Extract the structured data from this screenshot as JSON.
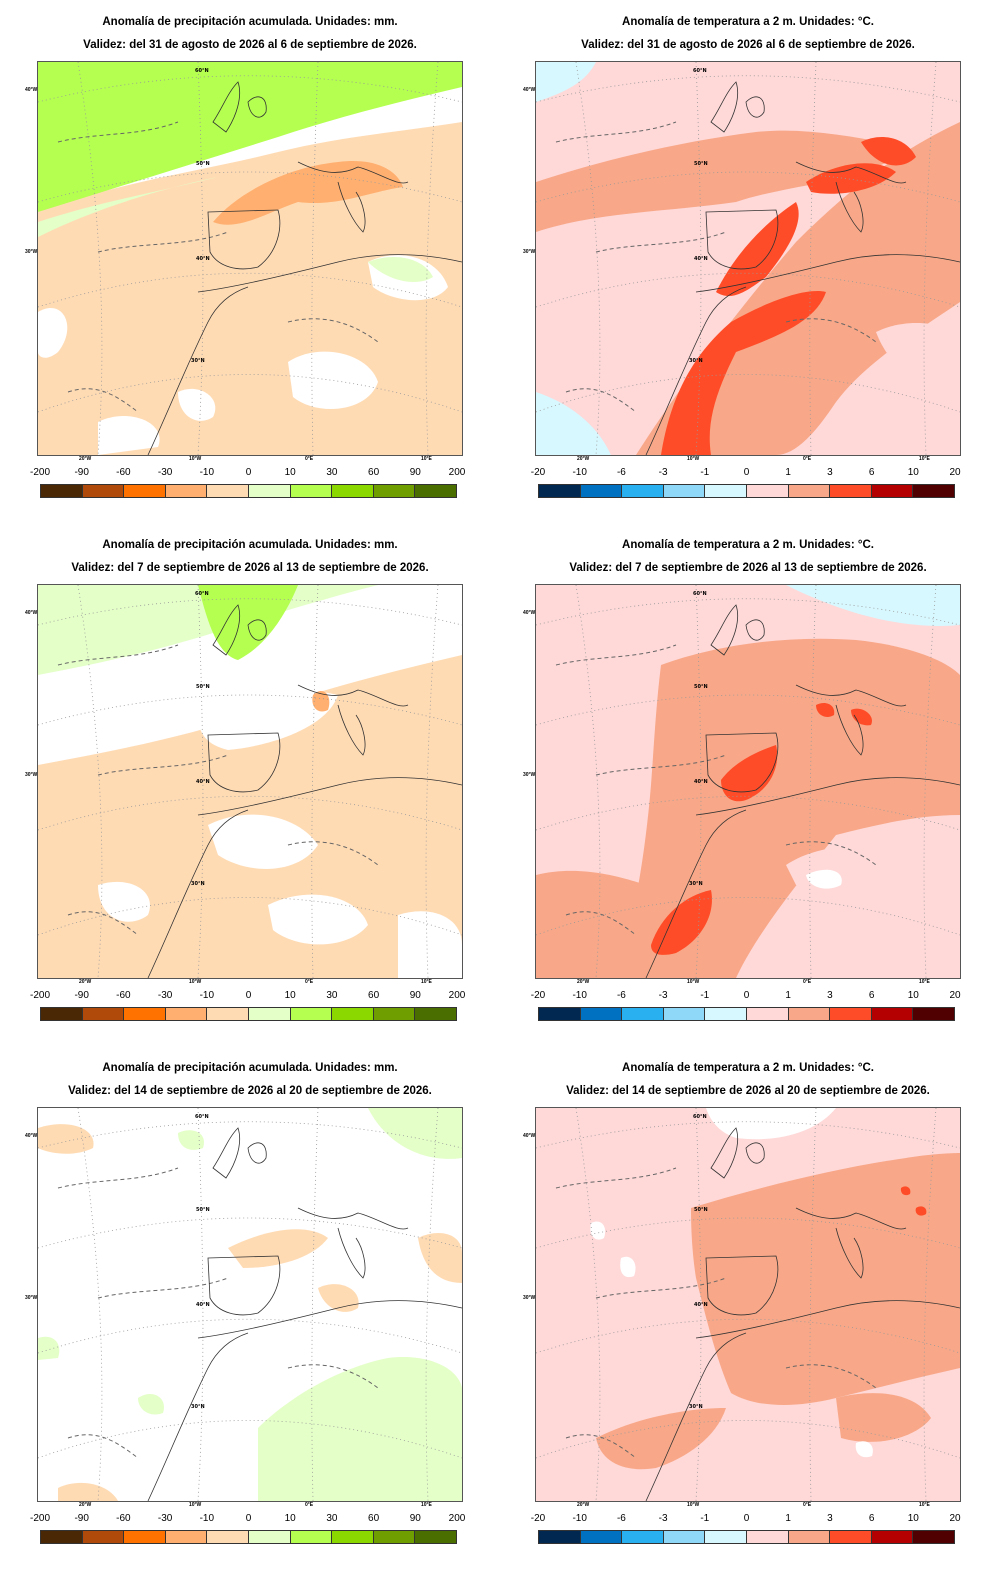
{
  "panels": [
    {
      "kind": "precip",
      "title": "Anomalía de precipitación acumulada. Unidades: mm.",
      "validity": "Validez: del 31 de agosto de 2026 al 6 de septiembre de 2026."
    },
    {
      "kind": "temp",
      "title": "Anomalía de temperatura a 2 m. Unidades: °C.",
      "validity": "Validez: del 31 de agosto de 2026 al 6 de septiembre de 2026."
    },
    {
      "kind": "precip",
      "title": "Anomalía de precipitación acumulada. Unidades: mm.",
      "validity": "Validez: del 7 de septiembre de 2026 al 13 de septiembre de 2026."
    },
    {
      "kind": "temp",
      "title": "Anomalía de temperatura a 2 m. Unidades: °C.",
      "validity": "Validez: del 7 de septiembre de 2026 al 13 de septiembre de 2026."
    },
    {
      "kind": "precip",
      "title": "Anomalía de precipitación acumulada. Unidades: mm.",
      "validity": "Validez: del 14 de septiembre de 2026 al 20 de septiembre de 2026."
    },
    {
      "kind": "temp",
      "title": "Anomalía de temperatura a 2 m. Unidades: °C.",
      "validity": "Validez: del 14 de septiembre de 2026 al 20 de septiembre de 2026."
    }
  ],
  "grid_labels": {
    "lat": [
      "60°N",
      "50°N",
      "40°N",
      "30°N"
    ],
    "lon_left": [
      "40°W",
      "30°W"
    ],
    "lon_bottom": [
      "20°W",
      "10°W",
      "0°E",
      "10°E"
    ]
  },
  "legends": {
    "precip": {
      "ticks": [
        "-200",
        "-90",
        "-60",
        "-30",
        "-10",
        "0",
        "10",
        "30",
        "60",
        "90",
        "200"
      ],
      "colors": [
        "#4a2806",
        "#b04a0a",
        "#ff7200",
        "#ffb070",
        "#ffdbb4",
        "#e4ffc8",
        "#b4ff50",
        "#8ad800",
        "#6e9e00",
        "#4a6e00"
      ]
    },
    "temp": {
      "ticks": [
        "-20",
        "-10",
        "-6",
        "-3",
        "-1",
        "0",
        "1",
        "3",
        "6",
        "10",
        "20"
      ],
      "colors": [
        "#002850",
        "#0070c0",
        "#28b0f0",
        "#90d8f8",
        "#d8f8ff",
        "#ffd8d8",
        "#f8a888",
        "#ff4c28",
        "#b40000",
        "#500000"
      ]
    }
  },
  "colors": {
    "map_background": "#ffffff",
    "coastline": "#333333",
    "graticule": "#999999",
    "dashed_contour": "#666666"
  }
}
